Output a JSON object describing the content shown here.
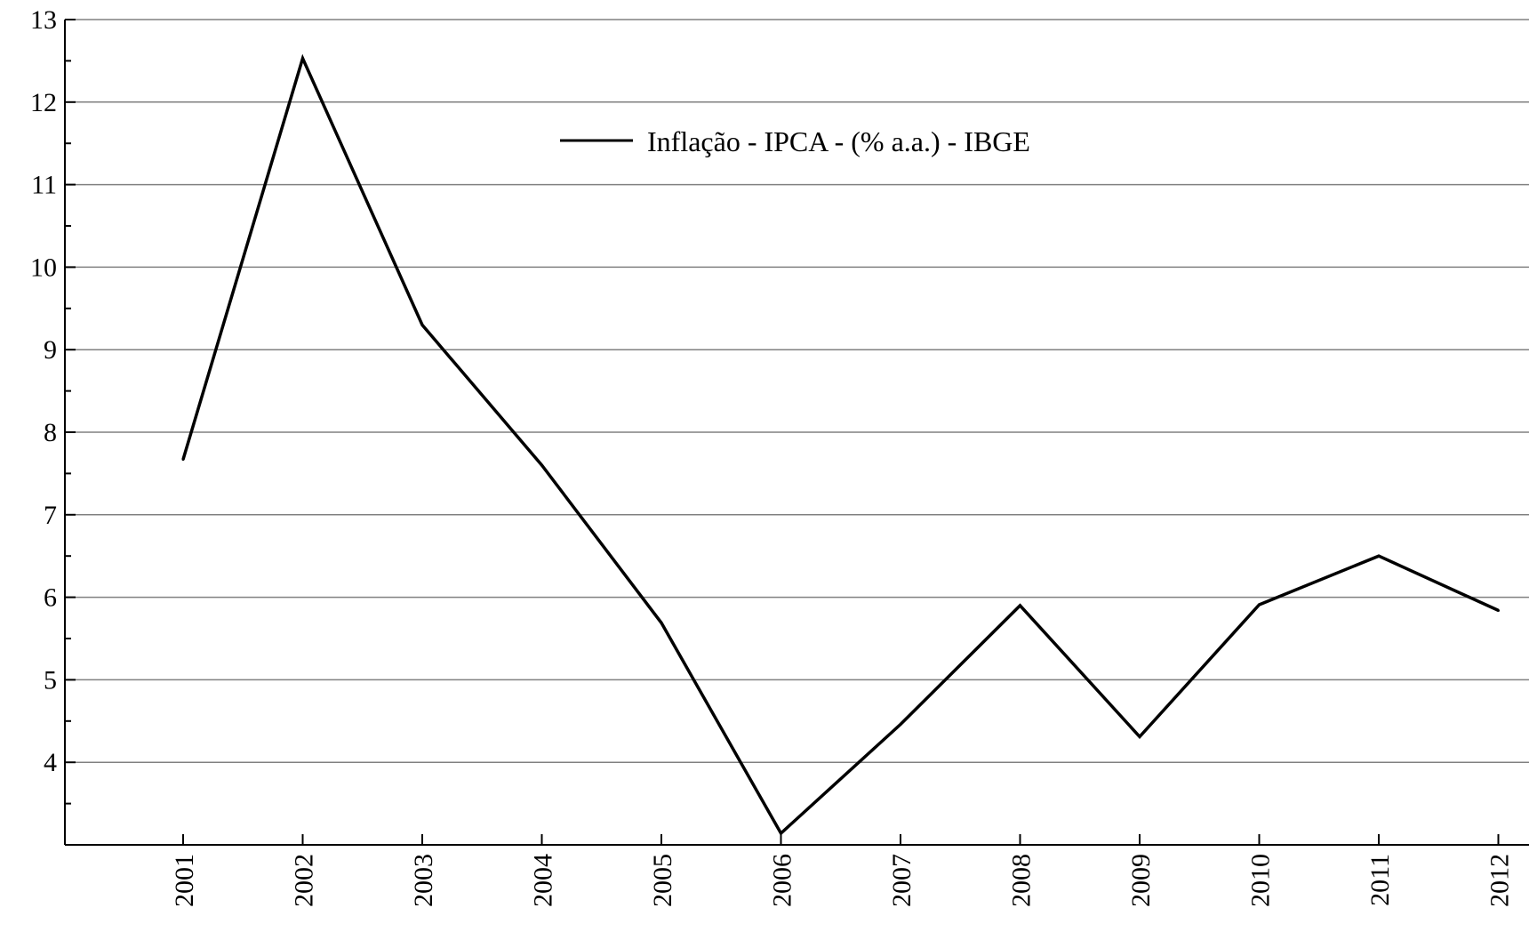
{
  "chart_data": {
    "type": "line",
    "title": "",
    "xlabel": "",
    "ylabel": "",
    "categories": [
      "2001",
      "2002",
      "2003",
      "2004",
      "2005",
      "2006",
      "2007",
      "2008",
      "2009",
      "2010",
      "2011",
      "2012"
    ],
    "series": [
      {
        "name": "Inflação - IPCA - (% a.a.) - IBGE",
        "values": [
          7.67,
          12.53,
          9.3,
          7.6,
          5.69,
          3.14,
          4.46,
          5.9,
          4.31,
          5.91,
          6.5,
          5.84
        ],
        "color": "#000000"
      }
    ],
    "ylim": [
      3.0,
      13.0
    ],
    "yticks": [
      4,
      5,
      6,
      7,
      8,
      9,
      10,
      11,
      12,
      13
    ],
    "grid": "horizontal",
    "legend_position": "top-center"
  }
}
